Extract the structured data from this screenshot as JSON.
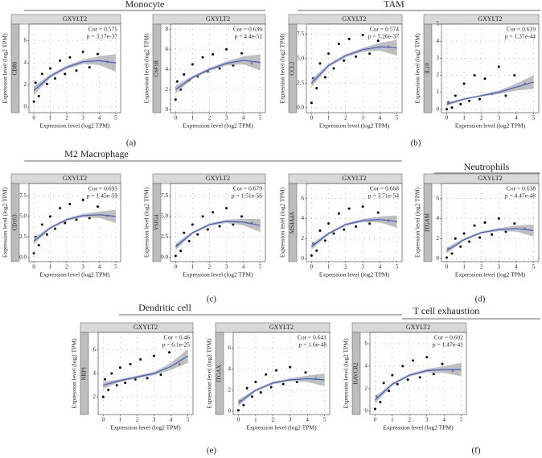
{
  "figure": {
    "groups": [
      {
        "title": "Monocyte",
        "label": "(a)"
      },
      {
        "title": "TAM",
        "label": "(b)"
      },
      {
        "title": "M2 Macrophage",
        "label": "(c)"
      },
      {
        "title": "Neutrophils",
        "label": "(d)"
      },
      {
        "title": "Dendritic cell",
        "label": "(e)"
      },
      {
        "title": "T cell exhaustion",
        "label": "(f)"
      }
    ]
  },
  "chart_data": [
    {
      "type": "scatter",
      "header": "GXYLT2",
      "gene": "CD86",
      "y_label": "Expression level (log2 TPM)",
      "x_label": "Expression level (log2 TPM)",
      "annotations": [
        "Cor = 0.575",
        "p = 3.17e-37"
      ],
      "xlim": [
        -0.3,
        5.3
      ],
      "xticks": [
        0,
        1,
        2,
        3,
        4,
        5
      ],
      "ylim": [
        -0.5,
        7.5
      ],
      "yticks": [
        0,
        2,
        4,
        6
      ],
      "grid": true,
      "color": "#000000",
      "fit_color": "#3a5fcd",
      "band_color": "#a9a9a9",
      "annotation_color": "#e00000",
      "x": [
        0,
        0.1,
        0.3,
        0.5,
        0.8,
        1.0,
        1.3,
        1.6,
        1.9,
        2.2,
        2.6,
        3.0,
        3.4,
        3.9,
        4.5
      ],
      "values": [
        0.5,
        2.2,
        1.0,
        3.0,
        2.1,
        3.5,
        2.6,
        4.2,
        3.0,
        4.5,
        3.3,
        5.0,
        3.6,
        4.8,
        4.1
      ],
      "fit": {
        "x": [
          0,
          1,
          2,
          3,
          4,
          5
        ],
        "y": [
          1.5,
          2.8,
          3.6,
          4.1,
          4.2,
          4.0
        ],
        "lower": [
          1.1,
          2.65,
          3.45,
          3.9,
          3.8,
          3.2
        ],
        "upper": [
          1.9,
          2.95,
          3.75,
          4.3,
          4.6,
          4.8
        ]
      }
    },
    {
      "type": "scatter",
      "header": "GXYLT2",
      "gene": "CSF1R",
      "y_label": "Expression level (log2 TPM)",
      "x_label": "Expression level (log2 TPM)",
      "annotations": [
        "Cor = 0.636",
        "p = 4.4e-51"
      ],
      "xlim": [
        -0.3,
        5.3
      ],
      "xticks": [
        0,
        1,
        2,
        3,
        4,
        5
      ],
      "ylim": [
        -0.3,
        8.5
      ],
      "yticks": [
        0,
        2,
        4,
        6,
        8
      ],
      "grid": true,
      "color": "#000000",
      "fit_color": "#3a5fcd",
      "band_color": "#a9a9a9",
      "annotation_color": "#e00000",
      "x": [
        0,
        0.1,
        0.3,
        0.5,
        0.8,
        1.0,
        1.3,
        1.6,
        1.9,
        2.2,
        2.6,
        3.0,
        3.4,
        3.9,
        4.5
      ],
      "values": [
        1.0,
        2.8,
        2.0,
        3.5,
        2.9,
        4.5,
        3.3,
        5.2,
        3.8,
        5.5,
        4.1,
        6.0,
        4.4,
        5.6,
        4.6
      ],
      "fit": {
        "x": [
          0,
          1,
          2,
          3,
          4,
          5
        ],
        "y": [
          2.0,
          3.2,
          4.0,
          4.6,
          4.9,
          4.7
        ],
        "lower": [
          1.6,
          3.05,
          3.85,
          4.4,
          4.5,
          3.9
        ],
        "upper": [
          2.4,
          3.35,
          4.15,
          4.8,
          5.3,
          5.5
        ]
      }
    },
    {
      "type": "scatter",
      "header": "GXYLT2",
      "gene": "CCL2",
      "y_label": "Expression level (log2 TPM)",
      "x_label": "Expression level (log2 TPM)",
      "annotations": [
        "Cor = 0.574",
        "p = 5.26e-37"
      ],
      "xlim": [
        -0.3,
        5.3
      ],
      "xticks": [
        0,
        1,
        2,
        3,
        4,
        5
      ],
      "ylim": [
        -0.5,
        8.5
      ],
      "yticks": [
        {
          "value": 0,
          "label": "0.0"
        },
        2.5,
        {
          "value": 5,
          "label": "5.0"
        },
        7.5
      ],
      "grid": true,
      "color": "#000000",
      "fit_color": "#3a5fcd",
      "band_color": "#a9a9a9",
      "annotation_color": "#e00000",
      "x": [
        0,
        0.1,
        0.3,
        0.5,
        0.8,
        1.0,
        1.3,
        1.6,
        1.9,
        2.2,
        2.6,
        3.0,
        3.4,
        3.9,
        4.5
      ],
      "values": [
        0.5,
        3.0,
        2.0,
        4.5,
        3.1,
        5.5,
        4.0,
        6.5,
        4.8,
        7.0,
        5.2,
        7.4,
        5.5,
        6.8,
        6.2
      ],
      "fit": {
        "x": [
          0,
          1,
          2,
          3,
          4,
          5
        ],
        "y": [
          2.5,
          4.3,
          5.3,
          5.9,
          6.2,
          6.1
        ],
        "lower": [
          2.1,
          4.15,
          5.15,
          5.7,
          5.8,
          5.3
        ],
        "upper": [
          2.9,
          4.45,
          5.45,
          6.1,
          6.6,
          6.9
        ]
      }
    },
    {
      "type": "scatter",
      "header": "GXYLT2",
      "gene": "IL10",
      "y_label": "Expression level (log2 TPM)",
      "x_label": "Expression level (log2 TPM)",
      "annotations": [
        "Cor = 0.619",
        "p = 1.37e-44"
      ],
      "xlim": [
        -0.3,
        5.3
      ],
      "xticks": [
        0,
        1,
        2,
        3,
        4,
        5
      ],
      "ylim": [
        -0.2,
        5
      ],
      "yticks": [
        0,
        1,
        2,
        3,
        4,
        5
      ],
      "grid": true,
      "color": "#000000",
      "fit_color": "#3a5fcd",
      "band_color": "#a9a9a9",
      "annotation_color": "#e00000",
      "x": [
        0,
        0.1,
        0.3,
        0.5,
        0.8,
        1.0,
        1.3,
        1.6,
        1.9,
        2.2,
        2.6,
        3.0,
        3.4,
        3.9,
        4.5
      ],
      "values": [
        0.0,
        0.4,
        0.1,
        0.8,
        0.3,
        1.5,
        0.5,
        2.0,
        0.6,
        1.8,
        0.9,
        2.5,
        0.8,
        2.0,
        1.5
      ],
      "fit": {
        "x": [
          0,
          1,
          2,
          3,
          4,
          5
        ],
        "y": [
          0.3,
          0.6,
          0.8,
          1.0,
          1.3,
          1.6
        ],
        "lower": [
          0.2,
          0.55,
          0.75,
          0.9,
          1.1,
          1.2
        ],
        "upper": [
          0.4,
          0.65,
          0.85,
          1.1,
          1.5,
          2.0
        ]
      }
    },
    {
      "type": "scatter",
      "header": "GXYLT2",
      "gene": "CD163",
      "y_label": "Expression level (log2 TPM)",
      "x_label": "Expression level (log2 TPM)",
      "annotations": [
        "Cor = 0.693",
        "p = 1.45e-59"
      ],
      "xlim": [
        -0.3,
        5.3
      ],
      "xticks": [
        0,
        1,
        2,
        3,
        4,
        5
      ],
      "ylim": [
        -0.5,
        9
      ],
      "yticks": [
        {
          "value": 0,
          "label": "0.0"
        },
        2.5,
        {
          "value": 5,
          "label": "5.0"
        },
        7.5
      ],
      "grid": true,
      "color": "#000000",
      "fit_color": "#3a5fcd",
      "band_color": "#a9a9a9",
      "annotation_color": "#e00000",
      "x": [
        0,
        0.1,
        0.3,
        0.5,
        0.8,
        1.0,
        1.3,
        1.6,
        1.9,
        2.2,
        2.6,
        3.0,
        3.4,
        3.9,
        4.5
      ],
      "values": [
        0.5,
        2.5,
        1.5,
        4.0,
        2.8,
        5.0,
        3.5,
        6.0,
        4.2,
        6.5,
        4.6,
        7.0,
        4.8,
        6.2,
        5.1
      ],
      "fit": {
        "x": [
          0,
          1,
          2,
          3,
          4,
          5
        ],
        "y": [
          2.0,
          3.6,
          4.6,
          5.1,
          5.2,
          5.0
        ],
        "lower": [
          1.6,
          3.45,
          4.45,
          4.9,
          4.8,
          4.2
        ],
        "upper": [
          2.4,
          3.75,
          4.75,
          5.3,
          5.6,
          5.8
        ]
      }
    },
    {
      "type": "scatter",
      "header": "GXYLT2",
      "gene": "VSIG4",
      "y_label": "Expression level (log2 TPM)",
      "x_label": "Expression level (log2 TPM)",
      "annotations": [
        "Cor = 0.679",
        "p = 1.51e-56"
      ],
      "xlim": [
        -0.3,
        5.3
      ],
      "xticks": [
        0,
        1,
        2,
        3,
        4,
        5
      ],
      "ylim": [
        -0.5,
        9
      ],
      "yticks": [
        {
          "value": 0,
          "label": "0.0"
        },
        2.5,
        {
          "value": 5,
          "label": "5.0"
        },
        7.5
      ],
      "grid": true,
      "color": "#000000",
      "fit_color": "#3a5fcd",
      "band_color": "#a9a9a9",
      "annotation_color": "#e00000",
      "x": [
        0,
        0.1,
        0.3,
        0.5,
        0.8,
        1.0,
        1.3,
        1.6,
        1.9,
        2.2,
        2.6,
        3.0,
        3.4,
        3.9,
        4.5
      ],
      "values": [
        0.2,
        1.5,
        0.8,
        3.0,
        2.0,
        4.0,
        2.8,
        5.0,
        3.4,
        5.5,
        3.8,
        6.0,
        4.0,
        5.0,
        4.2
      ],
      "fit": {
        "x": [
          0,
          1,
          2,
          3,
          4,
          5
        ],
        "y": [
          1.3,
          3.0,
          4.0,
          4.4,
          4.3,
          3.9
        ],
        "lower": [
          0.9,
          2.85,
          3.85,
          4.2,
          3.9,
          3.1
        ],
        "upper": [
          1.7,
          3.15,
          4.15,
          4.6,
          4.7,
          4.7
        ]
      }
    },
    {
      "type": "scatter",
      "header": "GXYLT2",
      "gene": "MS4A4A",
      "y_label": "Expression level (log2 TPM)",
      "x_label": "Expression level (log2 TPM)",
      "annotations": [
        "Cor = 0.668",
        "p = 3.71e-54"
      ],
      "xlim": [
        -0.3,
        5.3
      ],
      "xticks": [
        0,
        1,
        2,
        3,
        4,
        5
      ],
      "ylim": [
        -0.3,
        7.5
      ],
      "yticks": [
        0,
        2,
        4,
        6
      ],
      "grid": true,
      "color": "#000000",
      "fit_color": "#3a5fcd",
      "band_color": "#a9a9a9",
      "annotation_color": "#e00000",
      "x": [
        0,
        0.1,
        0.3,
        0.5,
        0.8,
        1.0,
        1.3,
        1.6,
        1.9,
        2.2,
        2.6,
        3.0,
        3.4,
        3.9,
        4.5
      ],
      "values": [
        0.3,
        1.5,
        0.8,
        2.8,
        1.8,
        3.5,
        2.5,
        4.5,
        2.9,
        5.0,
        3.2,
        5.2,
        3.5,
        4.6,
        3.8
      ],
      "fit": {
        "x": [
          0,
          1,
          2,
          3,
          4,
          5
        ],
        "y": [
          1.2,
          2.5,
          3.4,
          3.8,
          3.9,
          3.7
        ],
        "lower": [
          0.9,
          2.38,
          3.28,
          3.65,
          3.6,
          3.1
        ],
        "upper": [
          1.5,
          2.62,
          3.52,
          3.95,
          4.2,
          4.3
        ]
      }
    },
    {
      "type": "scatter",
      "header": "GXYLT2",
      "gene": "ITGAM",
      "y_label": "Expression level (log2 TPM)",
      "x_label": "Expression level (log2 TPM)",
      "annotations": [
        "Cor = 0.638",
        "p = 4.47e-48"
      ],
      "xlim": [
        -0.3,
        5.3
      ],
      "xticks": [
        0,
        1,
        2,
        3,
        4,
        5
      ],
      "ylim": [
        -0.3,
        7.5
      ],
      "yticks": [
        0,
        2,
        4,
        6
      ],
      "grid": true,
      "color": "#000000",
      "fit_color": "#3a5fcd",
      "band_color": "#a9a9a9",
      "annotation_color": "#e00000",
      "x": [
        0,
        0.1,
        0.3,
        0.5,
        0.8,
        1.0,
        1.3,
        1.6,
        1.9,
        2.2,
        2.6,
        3.0,
        3.4,
        3.9,
        4.5
      ],
      "values": [
        0.1,
        1.0,
        0.5,
        2.0,
        1.2,
        2.5,
        1.7,
        3.3,
        2.1,
        3.6,
        2.4,
        4.0,
        2.7,
        3.5,
        3.0
      ],
      "fit": {
        "x": [
          0,
          1,
          2,
          3,
          4,
          5
        ],
        "y": [
          0.8,
          1.9,
          2.6,
          2.9,
          3.0,
          2.8
        ],
        "lower": [
          0.5,
          1.78,
          2.48,
          2.75,
          2.7,
          2.2
        ],
        "upper": [
          1.1,
          2.02,
          2.72,
          3.05,
          3.3,
          3.4
        ]
      }
    },
    {
      "type": "scatter",
      "header": "GXYLT2",
      "gene": "NRP1",
      "y_label": "Expression level (log2 TPM)",
      "x_label": "Expression level (log2 TPM)",
      "annotations": [
        "Cor = 0.46",
        "p = 6.1e-25"
      ],
      "xlim": [
        -0.3,
        5.3
      ],
      "xticks": [
        0,
        1,
        2,
        3,
        4,
        5
      ],
      "ylim": [
        0.5,
        7.5
      ],
      "yticks": [
        2,
        4,
        6
      ],
      "grid": true,
      "color": "#000000",
      "fit_color": "#3a5fcd",
      "band_color": "#a9a9a9",
      "annotation_color": "#e00000",
      "x": [
        0,
        0.1,
        0.3,
        0.5,
        0.8,
        1.0,
        1.3,
        1.6,
        1.9,
        2.2,
        2.6,
        3.0,
        3.4,
        3.9,
        4.5
      ],
      "values": [
        2.0,
        3.5,
        2.6,
        4.0,
        3.0,
        4.5,
        3.2,
        4.8,
        3.5,
        5.2,
        3.6,
        5.5,
        3.9,
        5.8,
        4.8
      ],
      "fit": {
        "x": [
          0,
          1,
          2,
          3,
          4,
          5
        ],
        "y": [
          3.0,
          3.4,
          3.7,
          4.0,
          4.6,
          5.5
        ],
        "lower": [
          2.7,
          3.28,
          3.58,
          3.85,
          4.3,
          4.9
        ],
        "upper": [
          3.3,
          3.52,
          3.82,
          4.15,
          4.9,
          6.1
        ]
      }
    },
    {
      "type": "scatter",
      "header": "GXYLT2",
      "gene": "ITGAX",
      "y_label": "Expression level (log2 TPM)",
      "x_label": "Expression level (log2 TPM)",
      "annotations": [
        "Cor = 0.641",
        "p = 1.6e-48"
      ],
      "xlim": [
        -0.3,
        5.3
      ],
      "xticks": [
        0,
        1,
        2,
        3,
        4,
        5
      ],
      "ylim": [
        -0.3,
        7.5
      ],
      "yticks": [
        0,
        2,
        4,
        6
      ],
      "grid": true,
      "color": "#000000",
      "fit_color": "#3a5fcd",
      "band_color": "#a9a9a9",
      "annotation_color": "#e00000",
      "x": [
        0,
        0.1,
        0.3,
        0.5,
        0.8,
        1.0,
        1.3,
        1.6,
        1.9,
        2.2,
        2.6,
        3.0,
        3.4,
        3.9,
        4.5
      ],
      "values": [
        0.1,
        1.0,
        0.6,
        2.2,
        1.4,
        2.8,
        1.8,
        3.5,
        2.3,
        3.9,
        2.6,
        4.2,
        2.8,
        3.7,
        3.1
      ],
      "fit": {
        "x": [
          0,
          1,
          2,
          3,
          4,
          5
        ],
        "y": [
          0.8,
          2.0,
          2.7,
          3.0,
          3.1,
          3.0
        ],
        "lower": [
          0.5,
          1.88,
          2.58,
          2.85,
          2.8,
          2.4
        ],
        "upper": [
          1.1,
          2.12,
          2.82,
          3.15,
          3.4,
          3.6
        ]
      }
    },
    {
      "type": "scatter",
      "header": "GXYLT2",
      "gene": "HAVCR2",
      "y_label": "Expression level (log2 TPM)",
      "x_label": "Expression level (log2 TPM)",
      "annotations": [
        "Cor = 0.602",
        "p = 1.47e-41"
      ],
      "xlim": [
        -0.3,
        5.3
      ],
      "xticks": [
        0,
        1,
        2,
        3,
        4,
        5
      ],
      "ylim": [
        -0.3,
        7
      ],
      "yticks": [
        0,
        2,
        4,
        6
      ],
      "grid": true,
      "color": "#000000",
      "fit_color": "#3a5fcd",
      "band_color": "#a9a9a9",
      "annotation_color": "#e00000",
      "x": [
        0,
        0.1,
        0.3,
        0.5,
        0.8,
        1.0,
        1.3,
        1.6,
        1.9,
        2.2,
        2.6,
        3.0,
        3.4,
        3.9,
        4.5
      ],
      "values": [
        0.2,
        1.3,
        0.8,
        2.5,
        1.8,
        3.2,
        2.4,
        4.0,
        2.8,
        4.5,
        3.0,
        4.8,
        3.3,
        4.2,
        3.6
      ],
      "fit": {
        "x": [
          0,
          1,
          2,
          3,
          4,
          5
        ],
        "y": [
          1.0,
          2.4,
          3.2,
          3.6,
          3.7,
          3.7
        ],
        "lower": [
          0.7,
          2.28,
          3.08,
          3.45,
          3.4,
          3.1
        ],
        "upper": [
          1.3,
          2.52,
          3.32,
          3.75,
          4.0,
          4.3
        ]
      }
    }
  ]
}
